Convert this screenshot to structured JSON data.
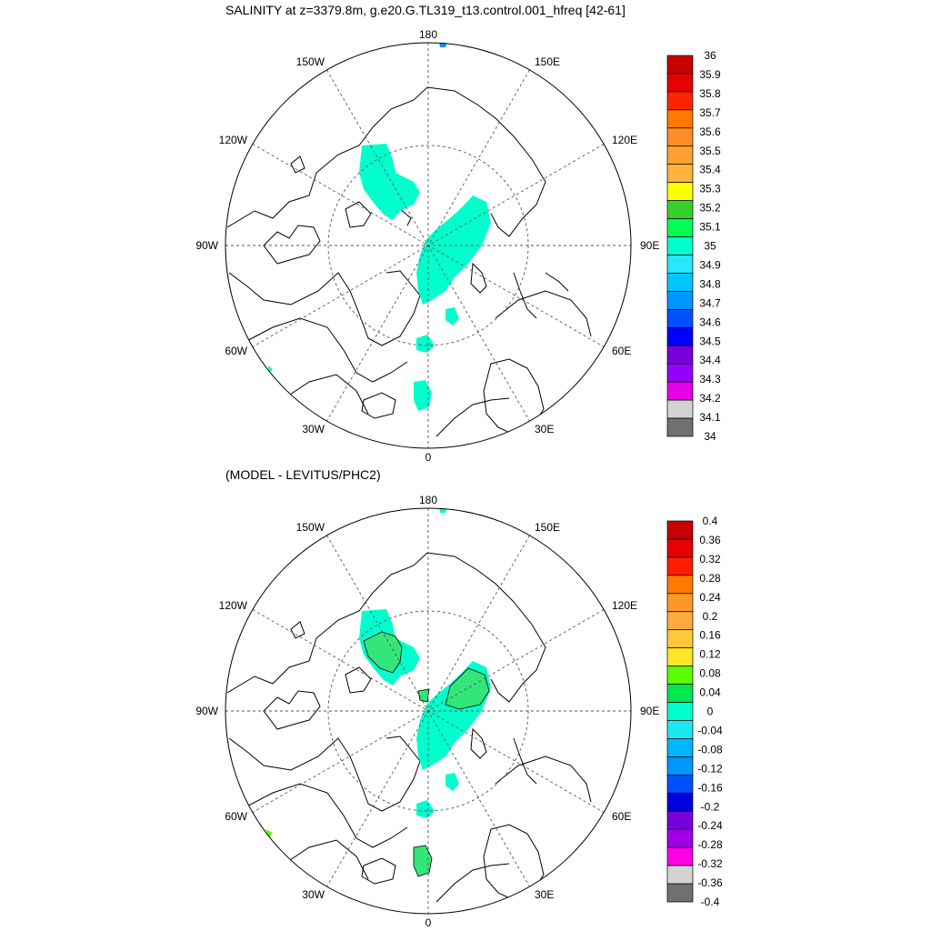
{
  "top_panel": {
    "title": "SALINITY at z=3379.8m, g.e20.G.TL319_t13.control.001_hfreq [42-61]",
    "lon_labels": {
      "n": "180",
      "s": "0",
      "w": "90W",
      "e": "90E",
      "w150": "150W",
      "e150": "150E",
      "w120": "120W",
      "e120": "120E",
      "w60": "60W",
      "e60": "60E",
      "w30": "30W",
      "e30": "30E"
    },
    "colorbar": {
      "labels": [
        "36",
        "35.9",
        "35.8",
        "35.7",
        "35.6",
        "35.5",
        "35.4",
        "35.3",
        "35.2",
        "35.1",
        "35",
        "34.9",
        "34.8",
        "34.7",
        "34.6",
        "34.5",
        "34.4",
        "34.3",
        "34.2",
        "34.1",
        "34"
      ],
      "colors": [
        "#c80000",
        "#e60000",
        "#ff2400",
        "#ff7800",
        "#ff8c28",
        "#ffa032",
        "#ffb43c",
        "#ffff00",
        "#34d22a",
        "#00ff55",
        "#00ffcc",
        "#28e6ff",
        "#00c8ff",
        "#0096ff",
        "#0050ff",
        "#0000ff",
        "#7800dc",
        "#9600ff",
        "#e600e6",
        "#d2d2d2",
        "#707070"
      ]
    }
  },
  "bottom_panel": {
    "title": "(MODEL - LEVITUS/PHC2)",
    "lon_labels": {
      "n": "180",
      "s": "0",
      "w": "90W",
      "e": "90E",
      "w150": "150W",
      "e150": "150E",
      "w120": "120W",
      "e120": "120E",
      "w60": "60W",
      "e60": "60E",
      "w30": "30W",
      "e30": "30E"
    },
    "colorbar": {
      "labels": [
        "0.4",
        "0.36",
        "0.32",
        "0.28",
        "0.24",
        "0.2",
        "0.16",
        "0.12",
        "0.08",
        "0.04",
        "0",
        "-0.04",
        "-0.08",
        "-0.12",
        "-0.16",
        "-0.2",
        "-0.24",
        "-0.28",
        "-0.32",
        "-0.36",
        "-0.4"
      ],
      "colors": [
        "#c80000",
        "#e60000",
        "#ff1e00",
        "#ff7800",
        "#ff9628",
        "#ffaa3c",
        "#ffc83c",
        "#ffe628",
        "#5aff00",
        "#00e650",
        "#00ffcc",
        "#1ee6f0",
        "#00b4ff",
        "#0096ff",
        "#0050ff",
        "#0000dc",
        "#7800dc",
        "#a000e6",
        "#ff00e6",
        "#d2d2d2",
        "#707070"
      ]
    }
  }
}
